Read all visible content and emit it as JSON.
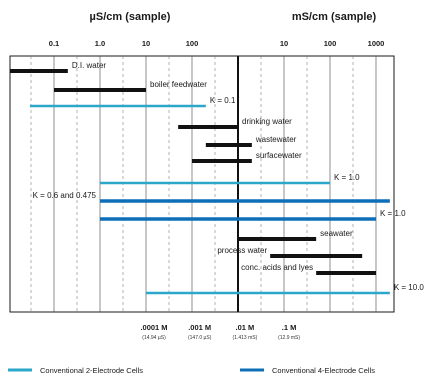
{
  "chart_data": {
    "type": "range-bar",
    "header_left": "µS/cm (sample)",
    "header_right": "mS/cm (sample)",
    "ticks_left": [
      "0.1",
      "1.0",
      "10",
      "100"
    ],
    "ticks_right": [
      "10",
      "100",
      "1000"
    ],
    "rows": [
      {
        "label": "D.I. water",
        "kind": "sample",
        "from_uScm": 0.01,
        "to_uScm": 0.2
      },
      {
        "label": "boiler feedwater",
        "kind": "sample",
        "from_uScm": 0.1,
        "to_uScm": 10
      },
      {
        "label": "K = 0.1",
        "kind": "2-electrode",
        "from_uScm": 0.03,
        "to_uScm": 200
      },
      {
        "label": "drinking water",
        "kind": "sample",
        "from_uScm": 50,
        "to_uScm": 1000
      },
      {
        "label": "wastewater",
        "kind": "sample",
        "from_uScm": 200,
        "to_uScm": 2000
      },
      {
        "label": "surfacewater",
        "kind": "sample",
        "from_uScm": 100,
        "to_uScm": 2000
      },
      {
        "label": "K = 1.0",
        "kind": "2-electrode",
        "from_uScm": 1,
        "to_uScm": 100000
      },
      {
        "label": "K = 0.6 and 0.475",
        "kind": "4-electrode",
        "from_uScm": 1,
        "to_uScm": 2000000
      },
      {
        "label": "K = 1.0",
        "kind": "4-electrode",
        "from_uScm": 1,
        "to_uScm": 1000000
      },
      {
        "label": "seawater",
        "kind": "sample",
        "from_uScm": 1000,
        "to_uScm": 50000
      },
      {
        "label": "process water",
        "kind": "sample",
        "from_uScm": 5000,
        "to_uScm": 500000
      },
      {
        "label": "conc. acids and lyes",
        "kind": "sample",
        "from_uScm": 50000,
        "to_uScm": 1000000
      },
      {
        "label": "K = 10.0",
        "kind": "2-electrode",
        "from_uScm": 10,
        "to_uScm": 2000000
      }
    ],
    "molar_marks": [
      {
        "label": ".0001 M",
        "sub": "(14.94 µS)",
        "at_uScm": 14.94
      },
      {
        "label": ".001 M",
        "sub": "(147.0 µS)",
        "at_uScm": 147
      },
      {
        "label": ".01 M",
        "sub": "(1.413 mS)",
        "at_uScm": 1413
      },
      {
        "label": ".1 M",
        "sub": "(12.9 mS)",
        "at_uScm": 12900
      }
    ],
    "x_range_uScm": [
      0.01,
      3000000
    ],
    "legend": [
      {
        "label": "Conventional 2-Electrode Cells",
        "color": "#2aa7c9"
      },
      {
        "label": "Conventional 4-Electrode Cells",
        "color": "#0e6fb8"
      }
    ],
    "colors": {
      "sample": "#111111",
      "2-electrode": "#2aa7c9",
      "4-electrode": "#0e6fb8"
    }
  }
}
